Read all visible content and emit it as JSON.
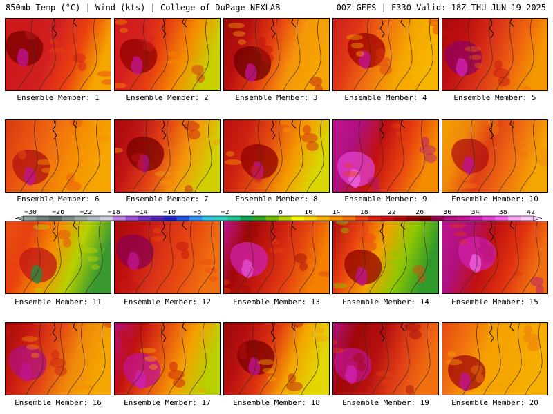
{
  "header": {
    "left": "850mb Temp (°C) | Wind (kts) | College of DuPage NEXLAB",
    "right": "00Z GEFS | F330 Valid: 18Z THU JUN 19 2025"
  },
  "members": [
    {
      "label": "Ensemble Member: 1",
      "stops": [
        "#cc1a1a",
        "#cc1a1a",
        "#d22020",
        "#ea4010",
        "#f5a500"
      ],
      "blob": "#7a0000",
      "accent": "#c0138f"
    },
    {
      "label": "Ensemble Member: 2",
      "stops": [
        "#cc1a1a",
        "#d52020",
        "#e63f10",
        "#f58c00",
        "#c8d000"
      ],
      "blob": "#900000",
      "accent": "#c0138f"
    },
    {
      "label": "Ensemble Member: 3",
      "stops": [
        "#a00808",
        "#b81010",
        "#e53d10",
        "#f5960a",
        "#f5a500"
      ],
      "blob": "#6e0000",
      "accent": "#c0138f"
    },
    {
      "label": "Ensemble Member: 4",
      "stops": [
        "#d02020",
        "#e03515",
        "#f07010",
        "#f5a500",
        "#f7b500"
      ],
      "blob": "#a00000",
      "accent": "#c0138f"
    },
    {
      "label": "Ensemble Member: 5",
      "stops": [
        "#a80a0a",
        "#c01010",
        "#d83018",
        "#ee6010",
        "#f59800"
      ],
      "blob": "#900060",
      "accent": "#d020b0"
    },
    {
      "label": "Ensemble Member: 6",
      "stops": [
        "#d63a10",
        "#e85010",
        "#f07010",
        "#f59000",
        "#f6a400"
      ],
      "blob": "#b01010",
      "accent": "#c0138f"
    },
    {
      "label": "Ensemble Member: 7",
      "stops": [
        "#a50a0a",
        "#c01515",
        "#e24515",
        "#f5960a",
        "#d0d000"
      ],
      "blob": "#7a0000",
      "accent": "#b01080"
    },
    {
      "label": "Ensemble Member: 8",
      "stops": [
        "#b81010",
        "#cc2010",
        "#e55010",
        "#f59c00",
        "#d8d800"
      ],
      "blob": "#900000",
      "accent": "#c0138f"
    },
    {
      "label": "Ensemble Member: 9",
      "stops": [
        "#c0138f",
        "#b01080",
        "#c01010",
        "#e84010",
        "#f58c00"
      ],
      "blob": "#e040d0",
      "accent": "#ee60e0"
    },
    {
      "label": "Ensemble Member: 10",
      "stops": [
        "#f5a000",
        "#f0880a",
        "#e04015",
        "#f07010",
        "#f5a500"
      ],
      "blob": "#b01010",
      "accent": "#c0138f"
    },
    {
      "label": "Ensemble Member: 11",
      "stops": [
        "#e85010",
        "#e84010",
        "#f58c00",
        "#b8d000",
        "#3a9a30"
      ],
      "blob": "#c01515",
      "accent": "#2a8a40"
    },
    {
      "label": "Ensemble Member: 12",
      "stops": [
        "#a80a0a",
        "#c01010",
        "#d83018",
        "#e84a10",
        "#f07010"
      ],
      "blob": "#8a0050",
      "accent": "#c0138f"
    },
    {
      "label": "Ensemble Member: 13",
      "stops": [
        "#c0138f",
        "#a00808",
        "#c81a10",
        "#e44010",
        "#f58000"
      ],
      "blob": "#d020b0",
      "accent": "#e050d0"
    },
    {
      "label": "Ensemble Member: 14",
      "stops": [
        "#b01010",
        "#e84010",
        "#f5a000",
        "#90c800",
        "#2f9a2a"
      ],
      "blob": "#900000",
      "accent": "#c0138f"
    },
    {
      "label": "Ensemble Member: 15",
      "stops": [
        "#c0138f",
        "#b01080",
        "#c01010",
        "#e03010",
        "#f07010"
      ],
      "blob": "#d020b0",
      "accent": "#ee60e0"
    },
    {
      "label": "Ensemble Member: 16",
      "stops": [
        "#a80a0a",
        "#c81a10",
        "#e24515",
        "#f08a0a",
        "#f5a500"
      ],
      "blob": "#b01080",
      "accent": "#c0138f"
    },
    {
      "label": "Ensemble Member: 17",
      "stops": [
        "#b01080",
        "#c01010",
        "#e85010",
        "#f5a000",
        "#b8d000"
      ],
      "blob": "#c0138f",
      "accent": "#d020b0"
    },
    {
      "label": "Ensemble Member: 18",
      "stops": [
        "#9a0808",
        "#b81010",
        "#e03510",
        "#f5a500",
        "#e0d800"
      ],
      "blob": "#7a0000",
      "accent": "#c0138f"
    },
    {
      "label": "Ensemble Member: 19",
      "stops": [
        "#b01080",
        "#a00808",
        "#b81010",
        "#e04015",
        "#f07010"
      ],
      "blob": "#c0138f",
      "accent": "#d020b0"
    },
    {
      "label": "Ensemble Member: 20",
      "stops": [
        "#e84a10",
        "#f07010",
        "#f5a000",
        "#f5a500",
        "#f6b000"
      ],
      "blob": "#a00808",
      "accent": "#c0138f"
    }
  ],
  "colorbar": {
    "labels": [
      "−30",
      "−26",
      "−22",
      "−18",
      "−14",
      "−10",
      "−6",
      "−2",
      "2",
      "6",
      "10",
      "14",
      "18",
      "22",
      "26",
      "30",
      "34",
      "38",
      "42"
    ],
    "colors": [
      "#8c9e98",
      "#6e7e7a",
      "#5a6a66",
      "#7c8c88",
      "#9aa8a4",
      "#b0bcc6",
      "#c8ccda",
      "#c080e0",
      "#a050d0",
      "#7030c0",
      "#5020b0",
      "#2020c0",
      "#2050e0",
      "#3090f0",
      "#30c0e0",
      "#30d0c0",
      "#20c090",
      "#10a050",
      "#30a020",
      "#70b800",
      "#b0d000",
      "#f0f000",
      "#f5d000",
      "#f5b000",
      "#f59000",
      "#f07010",
      "#e84010",
      "#d82010",
      "#c81010",
      "#b00808",
      "#900000",
      "#7a0000",
      "#900050",
      "#b01080",
      "#c0138f",
      "#d020b0",
      "#e040d0",
      "#f060e8",
      "#f4a0f0",
      "#f8c8f8"
    ]
  }
}
